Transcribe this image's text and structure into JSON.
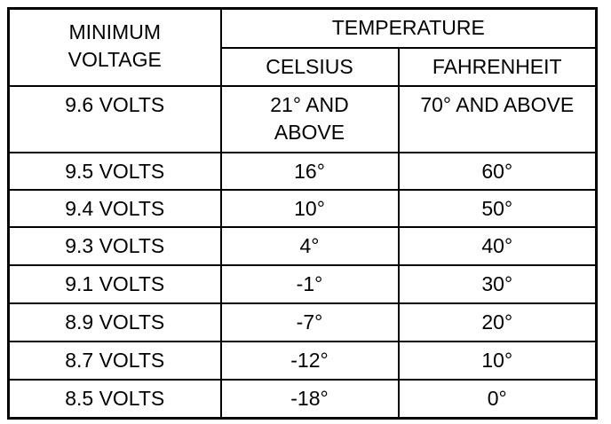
{
  "table": {
    "header": {
      "voltage": "MINIMUM VOLTAGE",
      "temperature": "TEMPERATURE",
      "celsius": "CELSIUS",
      "fahrenheit": "FAHRENHEIT"
    },
    "rows": [
      [
        "9.6 VOLTS",
        "21° AND ABOVE",
        "70° AND ABOVE"
      ],
      [
        "9.5 VOLTS",
        "16°",
        "60°"
      ],
      [
        "9.4 VOLTS",
        "10°",
        "50°"
      ],
      [
        "9.3 VOLTS",
        "4°",
        "40°"
      ],
      [
        "9.1 VOLTS",
        "-1°",
        "30°"
      ],
      [
        "8.9 VOLTS",
        "-7°",
        "20°"
      ],
      [
        "8.7 VOLTS",
        "-12°",
        "10°"
      ],
      [
        "8.5 VOLTS",
        "-18°",
        "0°"
      ]
    ]
  }
}
